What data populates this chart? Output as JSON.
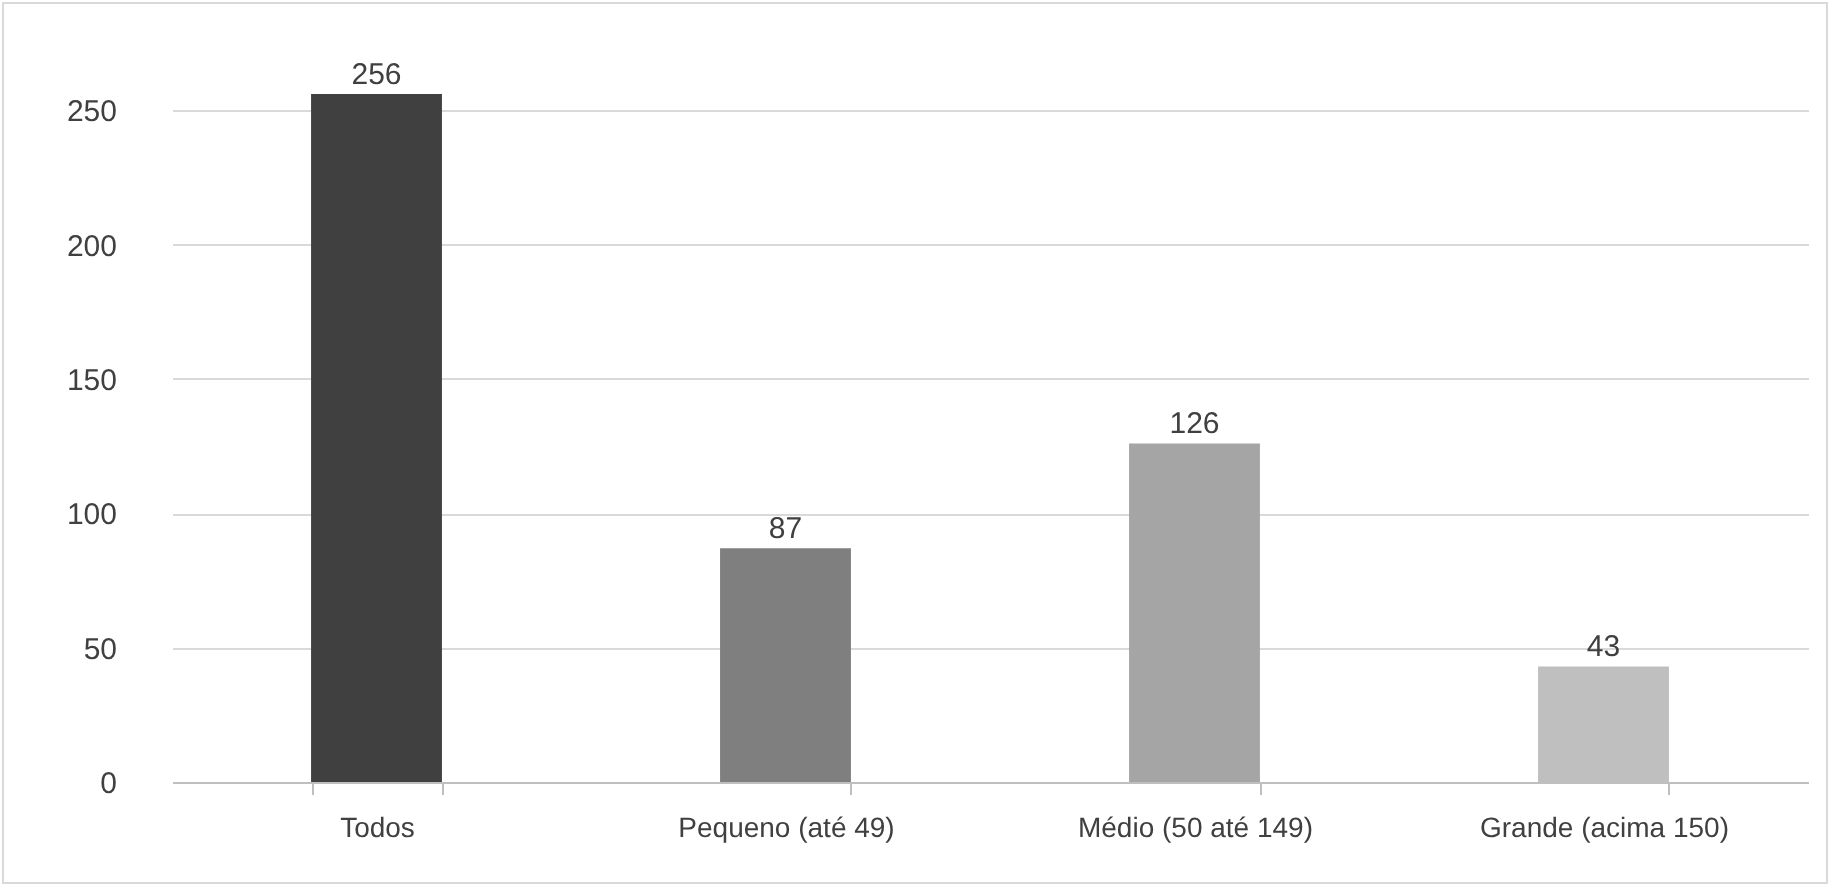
{
  "chart_data": {
    "type": "bar",
    "categories": [
      "Todos",
      "Pequeno (até 49)",
      "Médio (50 até 149)",
      "Grande (acima 150)"
    ],
    "values": [
      256,
      87,
      126,
      43
    ],
    "colors": [
      "#404040",
      "#7f7f7f",
      "#a5a5a5",
      "#bfbfbf"
    ],
    "ylim": [
      0,
      256
    ],
    "yticks": [
      0,
      50,
      100,
      150,
      200,
      250
    ],
    "grid": "y",
    "data_labels": true
  }
}
